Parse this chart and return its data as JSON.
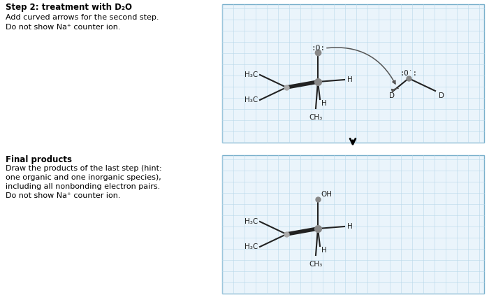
{
  "title_top": "Step 2: treatment with D₂O",
  "text_top": [
    "Add curved arrows for the second step.",
    "Do not show Na⁺ counter ion."
  ],
  "title_bottom": "Final products",
  "text_bottom": [
    "Draw the products of the last step (hint:",
    "one organic and one inorganic species),",
    "including all nonbonding electron pairs.",
    "Do not show Na⁺ counter ion."
  ],
  "grid_color": "#b8d8ea",
  "grid_border_color": "#7ab0cc",
  "background_color": "#ffffff",
  "box_bg": "#eaf4fb",
  "bond_color": "#222222",
  "atom_color": "#888888",
  "text_color": "#000000",
  "arrow_color": "#555555"
}
